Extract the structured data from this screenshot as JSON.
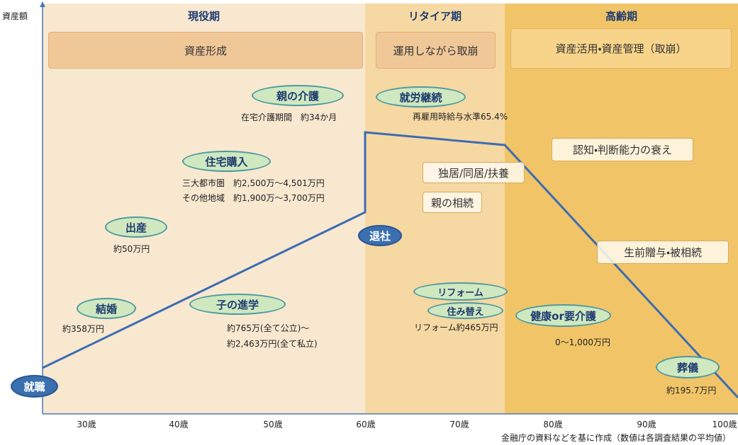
{
  "y_axis_label": "資産額",
  "phases": [
    {
      "title": "現役期",
      "subtitle": "資産形成"
    },
    {
      "title": "リタイア期",
      "subtitle": "運用しながら取崩"
    },
    {
      "title": "高齢期",
      "subtitle": "資産活用・資産管理（取崩）"
    }
  ],
  "events": [
    {
      "label": "親の介護",
      "details": [
        "在宅介護期間　約34か月"
      ]
    },
    {
      "label": "住宅購入",
      "details": [
        "三大都市圏　約2,500万～4,501万円",
        "その他地域　約1,900万～3,700万円"
      ]
    },
    {
      "label": "出産",
      "details": [
        "約50万円"
      ]
    },
    {
      "label": "結婚",
      "details": [
        "約358万円"
      ]
    },
    {
      "label": "子の進学",
      "details": [
        "約765万(全て公立)～",
        "約2,463万円(全て私立)"
      ]
    },
    {
      "label": "就職",
      "details": []
    },
    {
      "label": "就労継続",
      "details": [
        "再雇用時給与水準65.4%"
      ]
    },
    {
      "label": "退社",
      "details": []
    },
    {
      "label": "リフォーム",
      "details": [
        "リフォーム約465万円"
      ]
    },
    {
      "label": "住み替え",
      "details": []
    },
    {
      "label": "健康or要介護",
      "details": [
        "0～1,000万円"
      ]
    },
    {
      "label": "葬儀",
      "details": [
        "約195.7万円"
      ]
    }
  ],
  "boxes": [
    "独居/同居/扶養",
    "親の相続",
    "認知・判断能力の衰え",
    "生前贈与・被相続"
  ],
  "x_axis_labels": [
    "30歳",
    "40歳",
    "50歳",
    "60歳",
    "70歳",
    "80歳",
    "90歳",
    "100歳"
  ],
  "footnote": "金融庁の資料などを基に作成（数値は各調査結果の平均値）"
}
